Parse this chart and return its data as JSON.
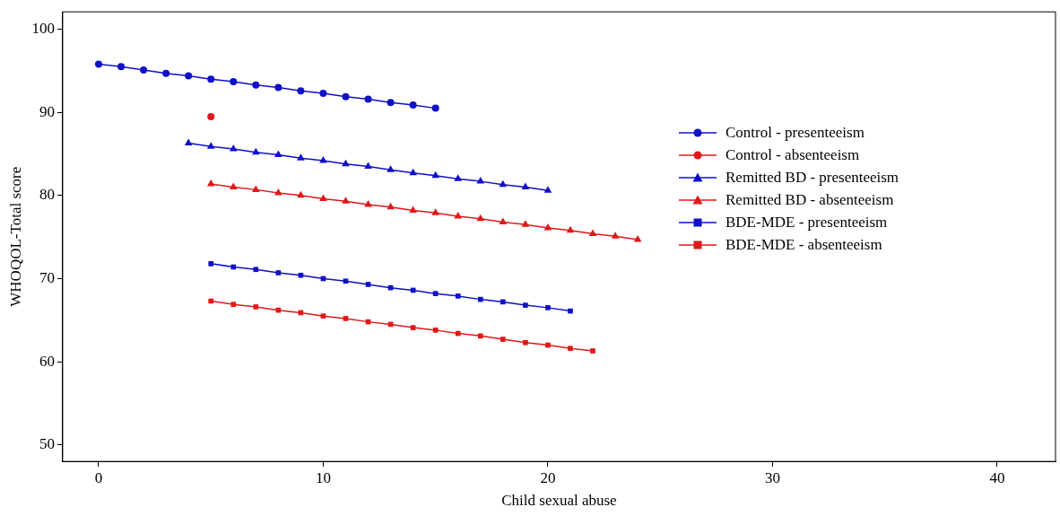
{
  "chart_data": {
    "type": "line",
    "xlabel": "Child sexual abuse",
    "ylabel": "WHOQOL-Total score",
    "xlim": [
      -1.6,
      42.6
    ],
    "ylim": [
      48,
      102.1
    ],
    "xticks": [
      0,
      10,
      20,
      30,
      40
    ],
    "yticks": [
      50,
      60,
      70,
      80,
      90,
      100
    ],
    "grid": false,
    "legend": "right",
    "line_style": "solid",
    "series": [
      {
        "name": "Control - presenteeism",
        "color": "#1010c8",
        "marker": "circle",
        "x": [
          0,
          1,
          2,
          3,
          4,
          5,
          6,
          7,
          8,
          9,
          10,
          11,
          12,
          13,
          14,
          15
        ],
        "values": [
          95.8,
          95.5,
          95.1,
          94.7,
          94.4,
          94.0,
          93.7,
          93.3,
          93.0,
          92.6,
          92.3,
          91.9,
          91.6,
          91.2,
          90.9,
          90.5
        ]
      },
      {
        "name": "Control - absenteeism",
        "color": "#e01818",
        "marker": "circle",
        "x": [
          5
        ],
        "values": [
          89.5
        ]
      },
      {
        "name": "Remitted BD - presenteeism",
        "color": "#1010c8",
        "marker": "triangle",
        "x": [
          4,
          5,
          6,
          7,
          8,
          9,
          10,
          11,
          12,
          13,
          14,
          15,
          16,
          17,
          18,
          19,
          20
        ],
        "values": [
          86.3,
          85.9,
          85.6,
          85.2,
          84.9,
          84.5,
          84.2,
          83.8,
          83.5,
          83.1,
          82.7,
          82.4,
          82.0,
          81.7,
          81.3,
          81.0,
          80.6
        ]
      },
      {
        "name": "Remitted BD - absenteeism",
        "color": "#e01818",
        "marker": "triangle",
        "x": [
          5,
          6,
          7,
          8,
          9,
          10,
          11,
          12,
          13,
          14,
          15,
          16,
          17,
          18,
          19,
          20,
          21,
          22,
          23,
          24
        ],
        "values": [
          81.4,
          81.0,
          80.7,
          80.3,
          80.0,
          79.6,
          79.3,
          78.9,
          78.6,
          78.2,
          77.9,
          77.5,
          77.2,
          76.8,
          76.5,
          76.1,
          75.8,
          75.4,
          75.1,
          74.7
        ]
      },
      {
        "name": "BDE-MDE - presenteeism",
        "color": "#1010c8",
        "marker": "square",
        "x": [
          5,
          6,
          7,
          8,
          9,
          10,
          11,
          12,
          13,
          14,
          15,
          16,
          17,
          18,
          19,
          20,
          21
        ],
        "values": [
          71.8,
          71.4,
          71.1,
          70.7,
          70.4,
          70.0,
          69.7,
          69.3,
          68.9,
          68.6,
          68.2,
          67.9,
          67.5,
          67.2,
          66.8,
          66.5,
          66.1
        ]
      },
      {
        "name": "BDE-MDE - absenteeism",
        "color": "#e01818",
        "marker": "square",
        "x": [
          5,
          6,
          7,
          8,
          9,
          10,
          11,
          12,
          13,
          14,
          15,
          16,
          17,
          18,
          19,
          20,
          21,
          22
        ],
        "values": [
          67.3,
          66.9,
          66.6,
          66.2,
          65.9,
          65.5,
          65.2,
          64.8,
          64.5,
          64.1,
          63.8,
          63.4,
          63.1,
          62.7,
          62.3,
          62.0,
          61.6,
          61.3
        ]
      }
    ]
  }
}
